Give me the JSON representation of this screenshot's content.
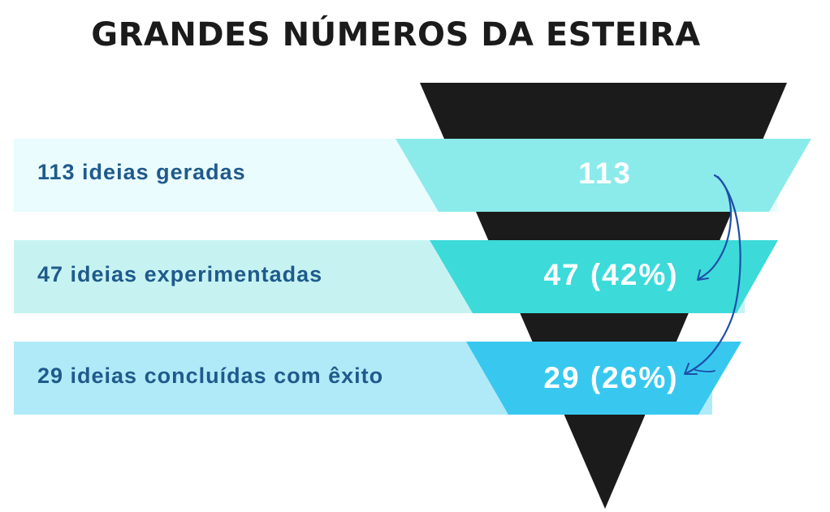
{
  "title": "GRANDES NÚMEROS DA ESTEIRA",
  "colors": {
    "title": "#1b1b1b",
    "label_text": "#1f5a8c",
    "funnel_dark": "#1b1b1b",
    "arrow": "#1d4fa8",
    "value_text": "#ffffff"
  },
  "rows": [
    {
      "label": "113 ideias geradas",
      "value": "113",
      "band_color": "#eafcfd",
      "trap_color": "#8aebea"
    },
    {
      "label": "47 ideias experimentadas",
      "value": "47 (42%)",
      "band_color": "#c6f3f2",
      "trap_color": "#3ddada"
    },
    {
      "label": "29 ideias concluídas com êxito",
      "value": "29 (26%)",
      "band_color": "#b0eaf8",
      "trap_color": "#38c8ef"
    }
  ]
}
